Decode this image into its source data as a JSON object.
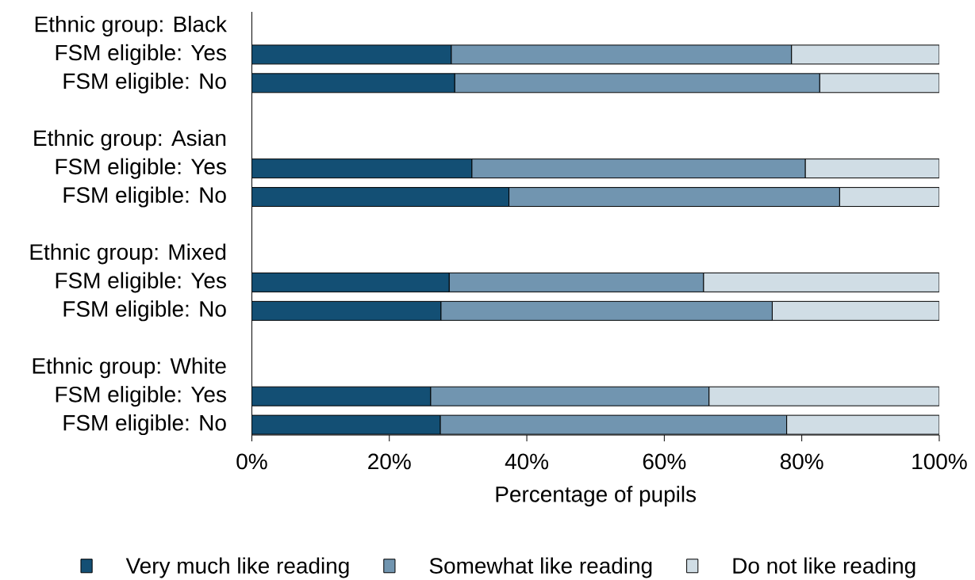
{
  "chart_data": {
    "type": "bar",
    "orientation": "horizontal",
    "stacked": true,
    "categories": [
      "Ethnic group: Black",
      "FSM eligible: Yes",
      "FSM eligible: No",
      "Ethnic group: Asian",
      "FSM eligible: Yes",
      "FSM eligible: No",
      "Ethnic group: Mixed",
      "FSM eligible: Yes",
      "FSM eligible: No",
      "Ethnic group: White",
      "FSM eligible: Yes",
      "FSM eligible: No"
    ],
    "series": [
      {
        "name": "Very much like reading",
        "color": "#134f74",
        "values": [
          null,
          29.0,
          29.5,
          null,
          32.0,
          37.4,
          null,
          28.7,
          27.5,
          null,
          26.0,
          27.4
        ]
      },
      {
        "name": "Somewhat like reading",
        "color": "#7195b0",
        "values": [
          null,
          49.5,
          53.1,
          null,
          48.5,
          48.1,
          null,
          37.0,
          48.2,
          null,
          40.5,
          50.4
        ]
      },
      {
        "name": "Do not like reading",
        "color": "#d0dde5",
        "values": [
          null,
          21.5,
          17.4,
          null,
          19.5,
          14.5,
          null,
          34.3,
          24.3,
          null,
          33.5,
          22.2
        ]
      }
    ],
    "xlim": [
      0,
      100
    ],
    "xticks": [
      {
        "value": 0,
        "label": "0%"
      },
      {
        "value": 20,
        "label": "20%"
      },
      {
        "value": 40,
        "label": "40%"
      },
      {
        "value": 60,
        "label": "60%"
      },
      {
        "value": 80,
        "label": "80%"
      },
      {
        "value": 100,
        "label": "100%"
      }
    ],
    "xlabel": "Percentage of pupils",
    "legend": "bottom"
  }
}
